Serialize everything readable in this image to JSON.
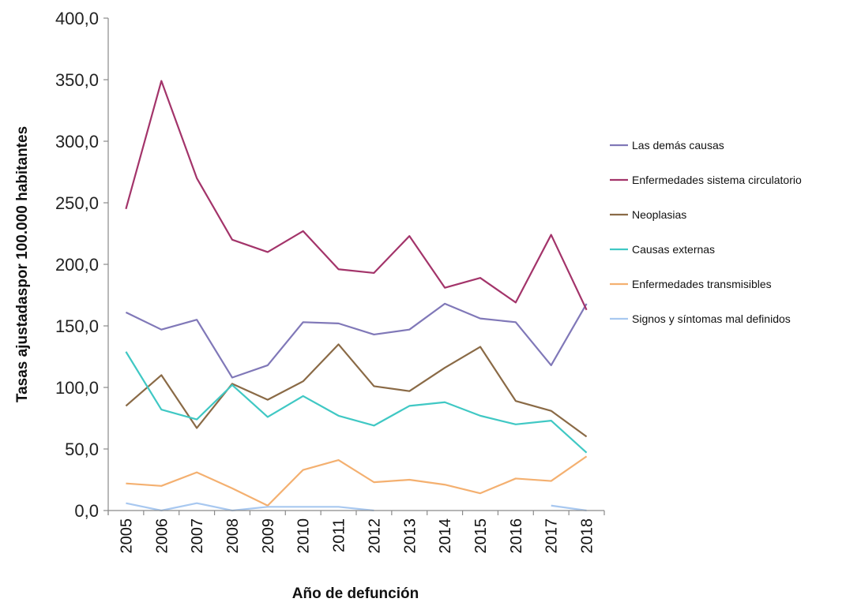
{
  "chart_data": {
    "type": "line",
    "title": "",
    "xlabel": "Año de defunción",
    "ylabel": "Tasas ajustadaspor 100.000 habitantes",
    "ylim": [
      0,
      400
    ],
    "y_ticks": [
      "0,0",
      "50,0",
      "100,0",
      "150,0",
      "200,0",
      "250,0",
      "300,0",
      "350,0",
      "400,0"
    ],
    "categories": [
      "2005",
      "2006",
      "2007",
      "2008",
      "2009",
      "2010",
      "2011",
      "2012",
      "2013",
      "2014",
      "2015",
      "2016",
      "2017",
      "2018"
    ],
    "grid": false,
    "legend_position": "right",
    "series": [
      {
        "name": "Las demás causas",
        "color": "#8078b8",
        "values": [
          161,
          147,
          155,
          108,
          118,
          153,
          152,
          143,
          147,
          168,
          156,
          153,
          118,
          168
        ]
      },
      {
        "name": "Enfermedades sistema circulatorio",
        "color": "#a3346a",
        "values": [
          245,
          349,
          270,
          220,
          210,
          227,
          196,
          193,
          223,
          181,
          189,
          169,
          224,
          163
        ]
      },
      {
        "name": "Neoplasias",
        "color": "#8a6a46",
        "values": [
          85,
          110,
          67,
          103,
          90,
          105,
          135,
          101,
          97,
          116,
          133,
          89,
          81,
          60
        ]
      },
      {
        "name": "Causas externas",
        "color": "#40c8c4",
        "values": [
          129,
          82,
          74,
          102,
          76,
          93,
          77,
          69,
          85,
          88,
          77,
          70,
          73,
          47
        ]
      },
      {
        "name": "Enfermedades transmisibles",
        "color": "#f4b070",
        "values": [
          22,
          20,
          31,
          18,
          4,
          33,
          41,
          23,
          25,
          21,
          14,
          26,
          24,
          44
        ]
      },
      {
        "name": "Signos y síntomas mal definidos",
        "color": "#a8c8f0",
        "values": [
          6,
          0,
          6,
          0,
          3,
          3,
          3,
          0,
          null,
          null,
          null,
          null,
          4,
          0
        ]
      }
    ]
  }
}
